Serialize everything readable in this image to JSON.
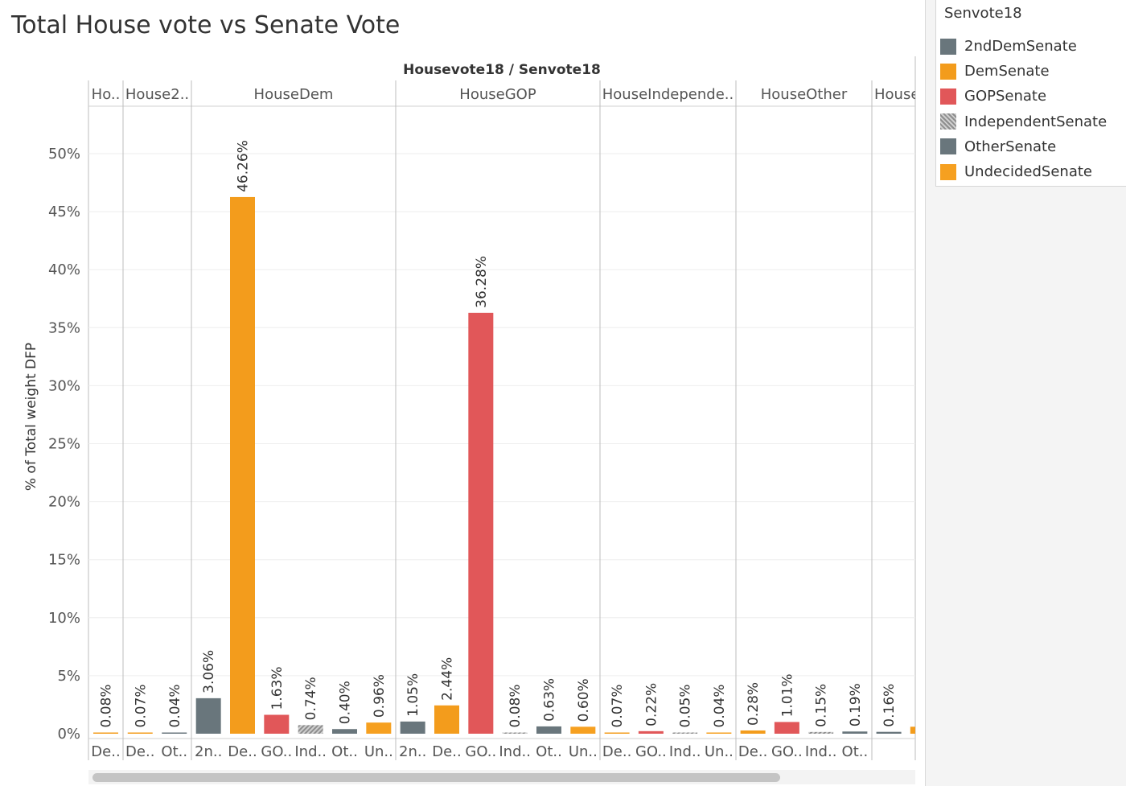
{
  "title": "Total House vote vs Senate Vote",
  "legend": {
    "title": "Senvote18",
    "items": [
      {
        "label": "2ndDemSenate",
        "color": "#69767c"
      },
      {
        "label": "DemSenate",
        "color": "#f39c1c"
      },
      {
        "label": "GOPSenate",
        "color": "#e15759"
      },
      {
        "label": "IndependentSenate",
        "color": "#a9a9a9"
      },
      {
        "label": "OtherSenate",
        "color": "#69767c"
      },
      {
        "label": "UndecidedSenate",
        "color": "#f6a020"
      }
    ]
  },
  "chart_data": {
    "type": "bar",
    "title": "Total House vote vs Senate Vote",
    "header": "Housevote18 / Senvote18",
    "ylabel": "% of Total weight DFP",
    "ylim": [
      0,
      0.5
    ],
    "yticks": [
      "0%",
      "5%",
      "10%",
      "15%",
      "20%",
      "25%",
      "30%",
      "35%",
      "40%",
      "45%",
      "50%"
    ],
    "panes": [
      {
        "header": "Ho..",
        "bars": [
          {
            "label": "De..",
            "series": "DemSenate",
            "value": 0.08,
            "data_label": "0.08%"
          }
        ]
      },
      {
        "header": "House2..",
        "bars": [
          {
            "label": "De..",
            "series": "DemSenate",
            "value": 0.07,
            "data_label": "0.07%"
          },
          {
            "label": "Ot..",
            "series": "OtherSenate",
            "value": 0.04,
            "data_label": "0.04%"
          }
        ]
      },
      {
        "header": "HouseDem",
        "bars": [
          {
            "label": "2n..",
            "series": "2ndDemSenate",
            "value": 3.06,
            "data_label": "3.06%"
          },
          {
            "label": "De..",
            "series": "DemSenate",
            "value": 46.26,
            "data_label": "46.26%"
          },
          {
            "label": "GO..",
            "series": "GOPSenate",
            "value": 1.63,
            "data_label": "1.63%"
          },
          {
            "label": "Ind..",
            "series": "IndependentSenate",
            "value": 0.74,
            "data_label": "0.74%"
          },
          {
            "label": "Ot..",
            "series": "OtherSenate",
            "value": 0.4,
            "data_label": "0.40%"
          },
          {
            "label": "Un..",
            "series": "UndecidedSenate",
            "value": 0.96,
            "data_label": "0.96%"
          }
        ]
      },
      {
        "header": "HouseGOP",
        "bars": [
          {
            "label": "2n..",
            "series": "2ndDemSenate",
            "value": 1.05,
            "data_label": "1.05%"
          },
          {
            "label": "De..",
            "series": "DemSenate",
            "value": 2.44,
            "data_label": "2.44%"
          },
          {
            "label": "GO..",
            "series": "GOPSenate",
            "value": 36.28,
            "data_label": "36.28%"
          },
          {
            "label": "Ind..",
            "series": "IndependentSenate",
            "value": 0.08,
            "data_label": "0.08%"
          },
          {
            "label": "Ot..",
            "series": "OtherSenate",
            "value": 0.63,
            "data_label": "0.63%"
          },
          {
            "label": "Un..",
            "series": "UndecidedSenate",
            "value": 0.6,
            "data_label": "0.60%"
          }
        ]
      },
      {
        "header": "HouseIndepende..",
        "bars": [
          {
            "label": "De..",
            "series": "DemSenate",
            "value": 0.07,
            "data_label": "0.07%"
          },
          {
            "label": "GO..",
            "series": "GOPSenate",
            "value": 0.22,
            "data_label": "0.22%"
          },
          {
            "label": "Ind..",
            "series": "IndependentSenate",
            "value": 0.05,
            "data_label": "0.05%"
          },
          {
            "label": "Un..",
            "series": "UndecidedSenate",
            "value": 0.04,
            "data_label": "0.04%"
          }
        ]
      },
      {
        "header": "HouseOther",
        "bars": [
          {
            "label": "De..",
            "series": "DemSenate",
            "value": 0.28,
            "data_label": "0.28%"
          },
          {
            "label": "GO..",
            "series": "GOPSenate",
            "value": 1.01,
            "data_label": "1.01%"
          },
          {
            "label": "Ind..",
            "series": "IndependentSenate",
            "value": 0.15,
            "data_label": "0.15%"
          },
          {
            "label": "Ot..",
            "series": "OtherSenate",
            "value": 0.19,
            "data_label": "0.19%"
          }
        ]
      },
      {
        "header": "House",
        "bars": [
          {
            "label": "",
            "series": "2ndDemSenate",
            "value": 0.16,
            "data_label": "0.16%"
          },
          {
            "label": "",
            "series": "DemSenate",
            "value": 0.6,
            "data_label": ""
          }
        ]
      }
    ]
  }
}
